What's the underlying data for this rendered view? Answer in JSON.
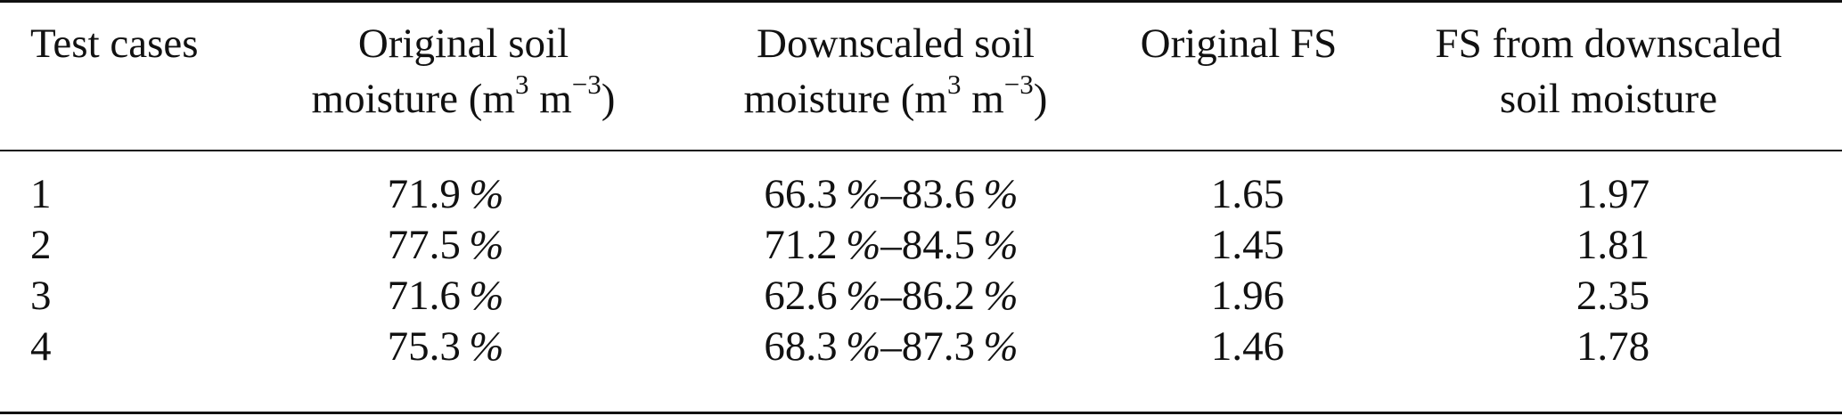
{
  "headers": {
    "test_cases": "Test cases",
    "original_soil_line1": "Original soil",
    "original_soil_line2": "moisture (m",
    "original_soil_exp1": "3",
    "original_soil_mid": " m",
    "original_soil_exp2": "−3",
    "original_soil_end": ")",
    "downscaled_soil_line1": "Downscaled soil",
    "downscaled_soil_line2": "moisture (m",
    "downscaled_soil_exp1": "3",
    "downscaled_soil_mid": " m",
    "downscaled_soil_exp2": "−3",
    "downscaled_soil_end": ")",
    "original_fs": "Original FS",
    "fs_downscaled_line1": "FS from downscaled",
    "fs_downscaled_line2": "soil moisture"
  },
  "rows": [
    {
      "case": "1",
      "orig_num": "71.9",
      "down_a": "66.3",
      "down_b": "83.6",
      "orig_fs": "1.65",
      "fs_down": "1.97"
    },
    {
      "case": "2",
      "orig_num": "77.5",
      "down_a": "71.2",
      "down_b": "84.5",
      "orig_fs": "1.45",
      "fs_down": "1.81"
    },
    {
      "case": "3",
      "orig_num": "71.6",
      "down_a": "62.6",
      "down_b": "86.2",
      "orig_fs": "1.96",
      "fs_down": "2.35"
    },
    {
      "case": "4",
      "orig_num": "75.3",
      "down_a": "68.3",
      "down_b": "87.3",
      "orig_fs": "1.46",
      "fs_down": "1.78"
    }
  ],
  "symbols": {
    "percent": "%",
    "dash": "–"
  }
}
